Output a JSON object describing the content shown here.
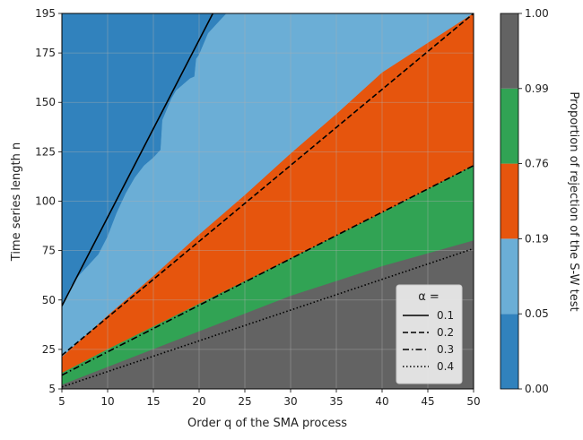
{
  "chart_data": {
    "type": "contour",
    "xlabel": "Order q of the SMA process",
    "ylabel": "Time series length n",
    "colorbar_label": "Proportion of rejection of the S-W test",
    "xlim": [
      5,
      50
    ],
    "ylim": [
      5,
      195
    ],
    "xticks": [
      "5",
      "10",
      "15",
      "20",
      "25",
      "30",
      "35",
      "40",
      "45",
      "50"
    ],
    "yticks": [
      "5",
      "25",
      "50",
      "75",
      "100",
      "125",
      "150",
      "175",
      "195"
    ],
    "grid": true,
    "levels": [
      "0.00",
      "0.05",
      "0.19",
      "0.76",
      "0.99",
      "1.00"
    ],
    "level_values": [
      0.0,
      0.05,
      0.19,
      0.76,
      0.99,
      1.0
    ],
    "level_colors": [
      "#3182bd",
      "#6baed6",
      "#e6550d",
      "#31a354",
      "#636363"
    ],
    "regions": [
      {
        "fill": "#3182bd",
        "label_range": "0.00-0.05",
        "boundary": [
          [
            5,
            5
          ],
          [
            5,
            195
          ],
          [
            50,
            195
          ],
          [
            50,
            5
          ]
        ]
      },
      {
        "fill": "#6baed6",
        "label_range": "0.05-0.19",
        "boundary": [
          [
            5,
            5
          ],
          [
            5,
            47
          ],
          [
            6,
            57
          ],
          [
            7,
            63
          ],
          [
            8,
            68
          ],
          [
            9,
            73
          ],
          [
            10,
            82
          ],
          [
            11,
            94
          ],
          [
            12,
            104
          ],
          [
            13,
            112
          ],
          [
            14,
            118
          ],
          [
            15,
            122
          ],
          [
            15.8,
            126
          ],
          [
            16,
            141
          ],
          [
            17,
            152
          ],
          [
            17.5,
            156
          ],
          [
            19,
            162
          ],
          [
            19.5,
            163
          ],
          [
            19.7,
            172
          ],
          [
            20,
            174
          ],
          [
            21,
            185
          ],
          [
            22,
            190
          ],
          [
            23,
            195
          ],
          [
            50,
            195
          ],
          [
            50,
            5
          ]
        ]
      },
      {
        "fill": "#e6550d",
        "label_range": "0.19-0.76",
        "boundary": [
          [
            5,
            5
          ],
          [
            5,
            21
          ],
          [
            10,
            42
          ],
          [
            15,
            62
          ],
          [
            20,
            83
          ],
          [
            25,
            103
          ],
          [
            30,
            124
          ],
          [
            35,
            144
          ],
          [
            40,
            165
          ],
          [
            45,
            180
          ],
          [
            48,
            189
          ],
          [
            50,
            195
          ],
          [
            50,
            5
          ]
        ]
      },
      {
        "fill": "#31a354",
        "label_range": "0.76-0.99",
        "boundary": [
          [
            5,
            5
          ],
          [
            5,
            13
          ],
          [
            10,
            25
          ],
          [
            20,
            48
          ],
          [
            30,
            71
          ],
          [
            40,
            94
          ],
          [
            50,
            118
          ],
          [
            50,
            5
          ]
        ]
      },
      {
        "fill": "#636363",
        "label_range": "0.99-1.00",
        "boundary": [
          [
            5,
            5
          ],
          [
            5,
            7
          ],
          [
            10,
            16
          ],
          [
            20,
            34
          ],
          [
            30,
            52
          ],
          [
            40,
            67
          ],
          [
            50,
            80
          ],
          [
            50,
            5
          ]
        ]
      }
    ],
    "legend": {
      "title": "α =",
      "placement": "lower-right"
    },
    "series": [
      {
        "name": "0.1",
        "style": "solid",
        "x": [
          5,
          21.5
        ],
        "y": [
          47,
          195
        ]
      },
      {
        "name": "0.2",
        "style": "dashed",
        "x": [
          5,
          50
        ],
        "y": [
          22,
          195
        ]
      },
      {
        "name": "0.3",
        "style": "dashdot",
        "x": [
          5,
          50
        ],
        "y": [
          12,
          118
        ]
      },
      {
        "name": "0.4",
        "style": "dotted",
        "x": [
          5,
          50
        ],
        "y": [
          6,
          76
        ]
      }
    ]
  }
}
